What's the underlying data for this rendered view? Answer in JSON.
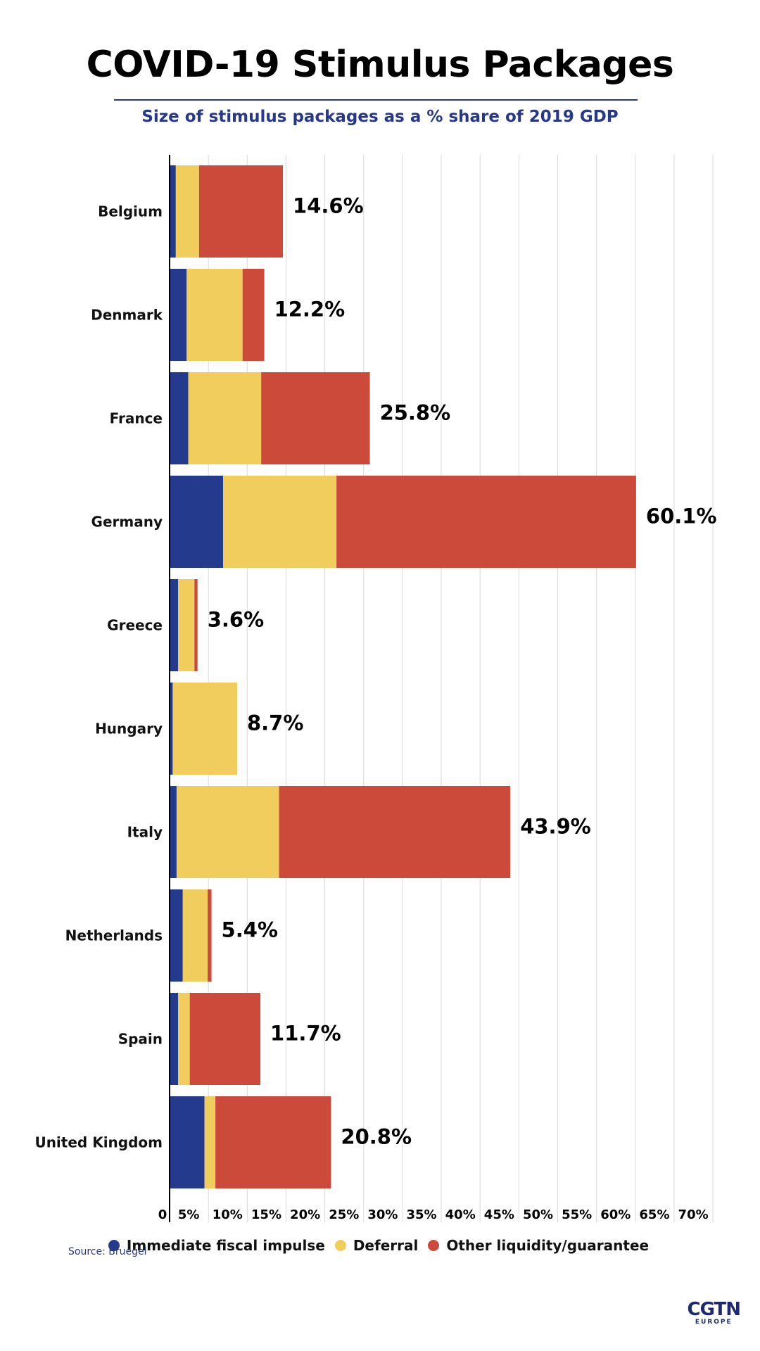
{
  "chart_data": {
    "type": "bar",
    "orientation": "horizontal",
    "stacked": true,
    "title": "COVID-19 Stimulus Packages",
    "subtitle": "Size of stimulus packages as a % share of 2019 GDP",
    "xlim": [
      0,
      70
    ],
    "ticks": [
      "0",
      "5%",
      "10%",
      "15%",
      "20%",
      "25%",
      "30%",
      "35%",
      "40%",
      "45%",
      "50%",
      "55%",
      "60%",
      "65%",
      "70%"
    ],
    "grid": true,
    "legend_position": "bottom",
    "categories": [
      "Belgium",
      "Denmark",
      "France",
      "Germany",
      "Greece",
      "Hungary",
      "Italy",
      "Netherlands",
      "Spain",
      "United Kingdom"
    ],
    "series": [
      {
        "name": "Immediate fiscal impulse",
        "color": "#243a8c",
        "values": [
          0.8,
          2.2,
          2.4,
          6.9,
          1.1,
          0.4,
          0.9,
          1.7,
          1.1,
          4.5
        ]
      },
      {
        "name": "Deferral",
        "color": "#f0cd5c",
        "values": [
          3.0,
          7.2,
          9.4,
          14.6,
          2.1,
          8.3,
          13.2,
          3.2,
          1.5,
          1.4
        ]
      },
      {
        "name": "Other liquidity/guarantee",
        "color": "#cc4a3a",
        "values": [
          10.8,
          2.8,
          14.0,
          38.6,
          0.4,
          0.0,
          29.8,
          0.5,
          9.1,
          14.9
        ]
      }
    ],
    "totals": [
      "14.6%",
      "12.2%",
      "25.8%",
      "60.1%",
      "3.6%",
      "8.7%",
      "43.9%",
      "5.4%",
      "11.7%",
      "20.8%"
    ]
  },
  "source": "Source: Bruegel",
  "logo": {
    "main": "CGTN",
    "sub": "EUROPE"
  }
}
